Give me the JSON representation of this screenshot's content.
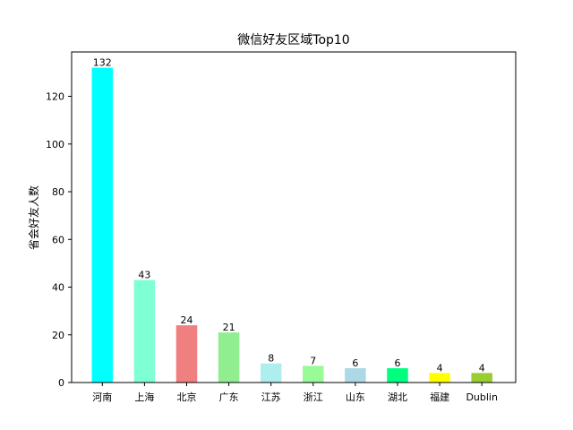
{
  "chart_data": {
    "type": "bar",
    "title": "微信好友区域Top10",
    "xlabel": "",
    "ylabel": "省会好友人数",
    "categories": [
      "河南",
      "上海",
      "北京",
      "广东",
      "江苏",
      "浙江",
      "山东",
      "湖北",
      "福建",
      "Dublin"
    ],
    "values": [
      132,
      43,
      24,
      21,
      8,
      7,
      6,
      6,
      4,
      4
    ],
    "colors": [
      "#00ffff",
      "#7fffd4",
      "#f08080",
      "#90ee90",
      "#afeeee",
      "#98fb98",
      "#add8e6",
      "#00ff7f",
      "#ffff00",
      "#9acd32"
    ],
    "ylim": [
      0,
      138.6
    ],
    "yticks": [
      0,
      20,
      40,
      60,
      80,
      100,
      120
    ],
    "grid": false,
    "legend": null,
    "data_labels": true
  }
}
